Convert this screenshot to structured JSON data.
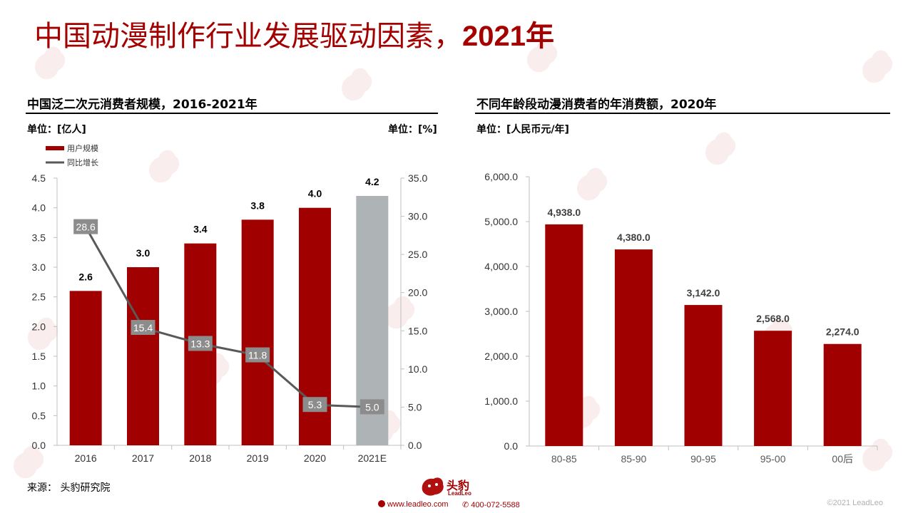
{
  "page": {
    "title_main": "中国动漫制作行业发展驱动因素，",
    "title_year": "2021年",
    "source": "来源：  头豹研究院",
    "footer_web": "www.leadleo.com",
    "footer_phone": "400-072-5588",
    "copyright": "©2021 LeadLeo",
    "logo_cn": "头豹",
    "logo_en": "LeadLeo"
  },
  "left": {
    "title": "中国泛二次元消费者规模，2016-2021年",
    "unit_left": "单位：[亿人]",
    "unit_right": "单位：[%]"
  },
  "right": {
    "title": "不同年龄段动漫消费者的年消费额，2020年",
    "unit": "单位：[人民币元/年]"
  },
  "chart_data": [
    {
      "type": "bar",
      "categories": [
        "2016",
        "2017",
        "2018",
        "2019",
        "2020",
        "2021E"
      ],
      "series": [
        {
          "name": "用户规模",
          "kind": "bar",
          "axis": "left",
          "values": [
            2.6,
            3.0,
            3.4,
            3.8,
            4.0,
            4.2
          ],
          "labels": [
            "2.6",
            "3.0",
            "3.4",
            "3.8",
            "4.0",
            "4.2"
          ],
          "colors": [
            "#a00000",
            "#a00000",
            "#a00000",
            "#a00000",
            "#a00000",
            "#aeb3b6"
          ]
        },
        {
          "name": "同比增长",
          "kind": "line",
          "axis": "right",
          "color": "#595959",
          "x_index": [
            0,
            1,
            2,
            3,
            4,
            5
          ],
          "values": [
            28.6,
            15.4,
            13.3,
            11.8,
            5.3,
            5.0
          ],
          "labels": [
            "28.6",
            "15.4",
            "13.3",
            "11.8",
            "5.3",
            "5.0"
          ]
        }
      ],
      "y_left": {
        "min": 0,
        "max": 4.5,
        "ticks": [
          "0.0",
          "0.5",
          "1.0",
          "1.5",
          "2.0",
          "2.5",
          "3.0",
          "3.5",
          "4.0",
          "4.5"
        ]
      },
      "y_right": {
        "min": 0,
        "max": 35,
        "ticks": [
          "0.0",
          "5.0",
          "10.0",
          "15.0",
          "20.0",
          "25.0",
          "30.0",
          "35.0"
        ]
      },
      "legend": "top-left",
      "grid": false
    },
    {
      "type": "bar",
      "categories": [
        "80-85",
        "85-90",
        "90-95",
        "95-00",
        "00后"
      ],
      "values": [
        4938.0,
        4380.0,
        3142.0,
        2568.0,
        2274.0
      ],
      "labels": [
        "4,938.0",
        "4,380.0",
        "3,142.0",
        "2,568.0",
        "2,274.0"
      ],
      "color": "#a00000",
      "ylim": [
        0,
        6000
      ],
      "y_ticks": [
        "0.0",
        "1,000.0",
        "2,000.0",
        "3,000.0",
        "4,000.0",
        "5,000.0",
        "6,000.0"
      ],
      "grid": false
    }
  ]
}
